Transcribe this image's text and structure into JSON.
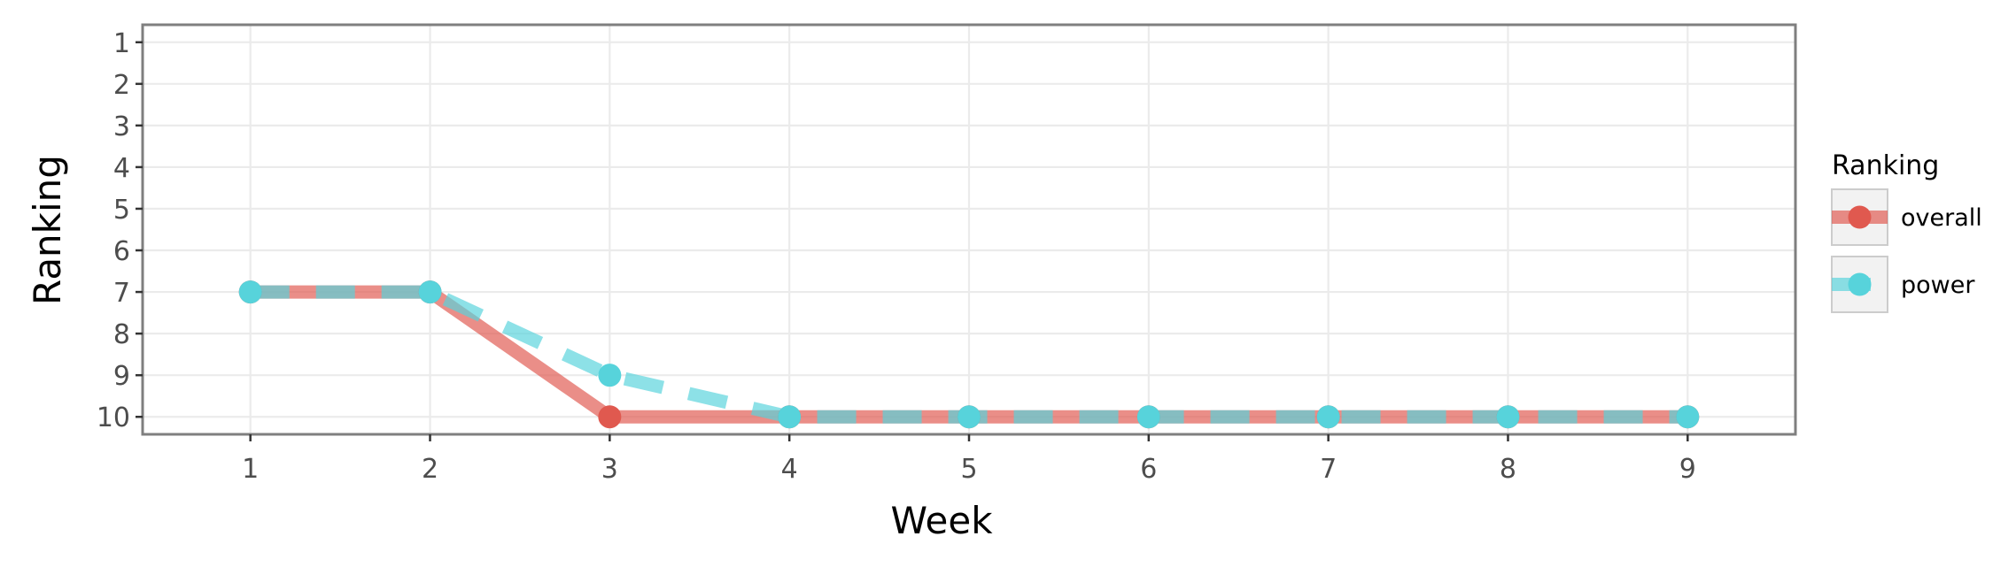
{
  "chart_data": {
    "type": "line",
    "xlabel": "Week",
    "ylabel": "Ranking",
    "x": [
      1,
      2,
      3,
      4,
      5,
      6,
      7,
      8,
      9
    ],
    "xlim": [
      0.4,
      9.6
    ],
    "ylim": [
      10.42,
      0.58
    ],
    "y_reversed": true,
    "x_ticks": [
      "1",
      "2",
      "3",
      "4",
      "5",
      "6",
      "7",
      "8",
      "9"
    ],
    "y_ticks": [
      "1",
      "2",
      "3",
      "4",
      "5",
      "6",
      "7",
      "8",
      "9",
      "10"
    ],
    "grid": true,
    "legend_title": "Ranking",
    "legend_position": "right",
    "series": [
      {
        "name": "overall",
        "values": [
          7,
          7,
          10,
          10,
          10,
          10,
          10,
          10,
          10
        ],
        "color": "#e0594f",
        "line_style": "solid"
      },
      {
        "name": "power",
        "values": [
          7,
          7,
          9,
          10,
          10,
          10,
          10,
          10,
          10
        ],
        "color": "#57d3db",
        "line_style": "dashed"
      }
    ]
  }
}
